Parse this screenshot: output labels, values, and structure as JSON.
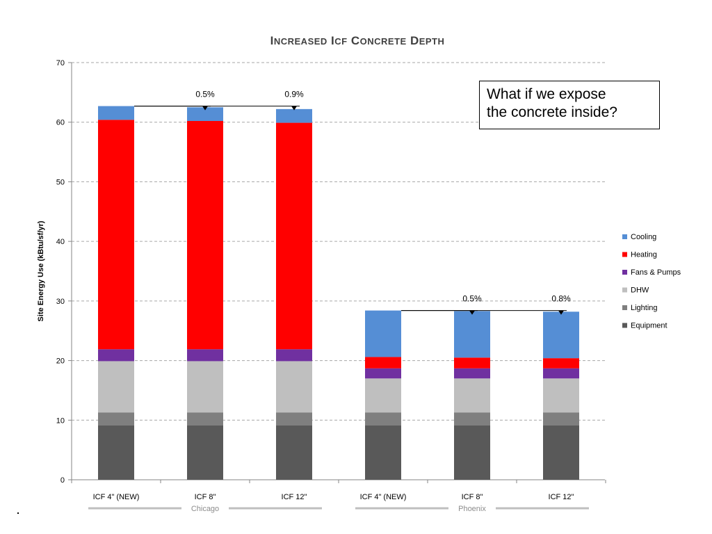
{
  "callout": {
    "line1": "What if we expose",
    "line2": "the concrete inside?"
  },
  "chart_data": {
    "type": "bar",
    "stacked": true,
    "title": "Increased ICF Concrete Depth",
    "ylabel": "Site Energy Use (kBtu/sf/yr)",
    "xlabel": "",
    "ylim": [
      0,
      70
    ],
    "yticks": [
      0,
      10,
      20,
      30,
      40,
      50,
      60,
      70
    ],
    "grid": true,
    "legend_position": "right",
    "categories": [
      "ICF 4\" (NEW)",
      "ICF 8\"",
      "ICF 12\"",
      "ICF 4\" (NEW)",
      "ICF 8\"",
      "ICF 12\""
    ],
    "groups": [
      {
        "name": "Chicago",
        "categories": [
          0,
          1,
          2
        ]
      },
      {
        "name": "Phoenix",
        "categories": [
          3,
          4,
          5
        ]
      }
    ],
    "series": [
      {
        "name": "Equipment",
        "color": "#595959",
        "values": [
          9.1,
          9.1,
          9.1,
          9.1,
          9.1,
          9.1
        ]
      },
      {
        "name": "Lighting",
        "color": "#7f7f7f",
        "values": [
          2.2,
          2.2,
          2.2,
          2.2,
          2.2,
          2.2
        ]
      },
      {
        "name": "DHW",
        "color": "#bfbfbf",
        "values": [
          8.6,
          8.6,
          8.6,
          5.7,
          5.7,
          5.7
        ]
      },
      {
        "name": "Fans & Pumps",
        "color": "#7030a0",
        "values": [
          2.0,
          2.0,
          2.0,
          1.7,
          1.7,
          1.7
        ]
      },
      {
        "name": "Heating",
        "color": "#ff0000",
        "values": [
          38.5,
          38.3,
          38.0,
          1.9,
          1.8,
          1.7
        ]
      },
      {
        "name": "Cooling",
        "color": "#558ed5",
        "values": [
          2.3,
          2.3,
          2.3,
          7.8,
          7.8,
          7.8
        ]
      }
    ],
    "legend_order": [
      "Cooling",
      "Heating",
      "Fans & Pumps",
      "DHW",
      "Lighting",
      "Equipment"
    ],
    "annotations": [
      {
        "label": "0.5%",
        "from": 0,
        "to": 1
      },
      {
        "label": "0.9%",
        "from": 0,
        "to": 2
      },
      {
        "label": "0.5%",
        "from": 3,
        "to": 4
      },
      {
        "label": "0.8%",
        "from": 3,
        "to": 5
      }
    ]
  }
}
